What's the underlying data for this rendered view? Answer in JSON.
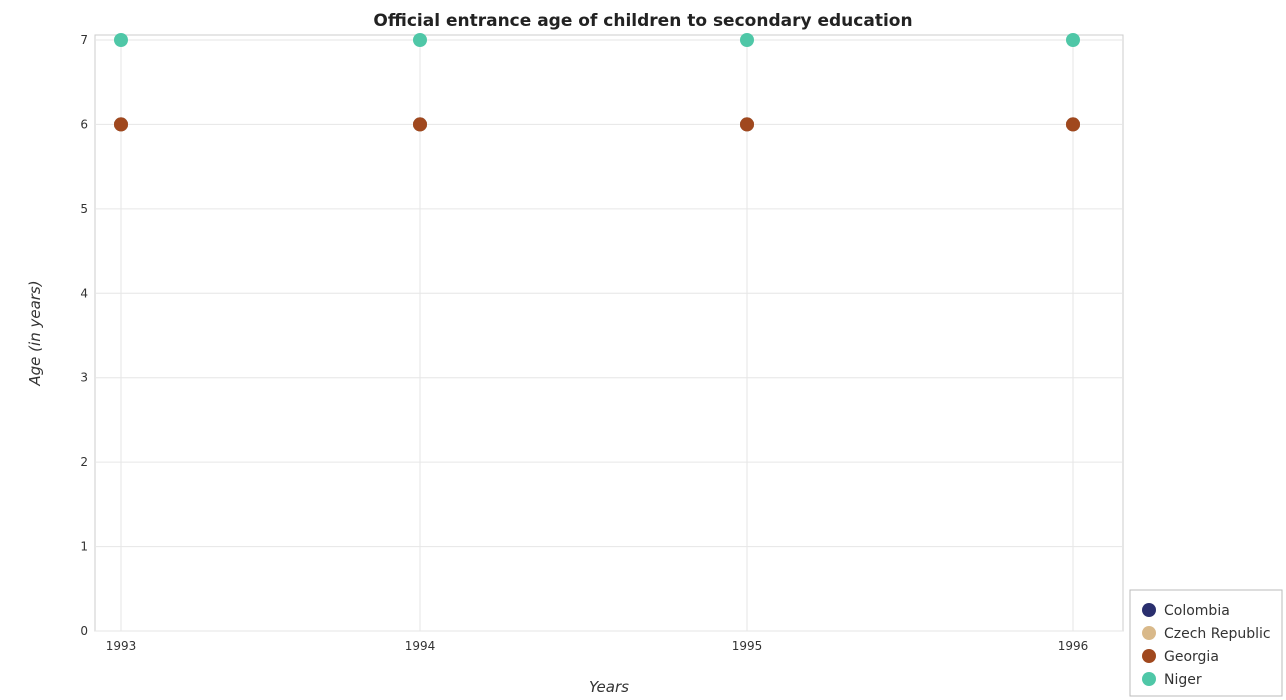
{
  "chart_data": {
    "type": "scatter",
    "title": "Official entrance age of children to secondary education",
    "xlabel": "Years",
    "ylabel": "Age (in years)",
    "categories": [
      "1993",
      "1994",
      "1995",
      "1996"
    ],
    "ylim": [
      0,
      7
    ],
    "yticks": [
      "0",
      "1",
      "2",
      "3",
      "4",
      "5",
      "6",
      "7"
    ],
    "grid": true,
    "legend_position": "bottom-right",
    "series": [
      {
        "name": "Colombia",
        "color": "#2a2f6e",
        "values": [
          6,
          6,
          6,
          6
        ]
      },
      {
        "name": "Czech Republic",
        "color": "#d9b98a",
        "values": [
          6,
          6,
          6,
          6
        ]
      },
      {
        "name": "Georgia",
        "color": "#a0481e",
        "values": [
          6,
          6,
          6,
          6
        ]
      },
      {
        "name": "Niger",
        "color": "#4fc7a7",
        "values": [
          7,
          7,
          7,
          7
        ]
      }
    ]
  }
}
